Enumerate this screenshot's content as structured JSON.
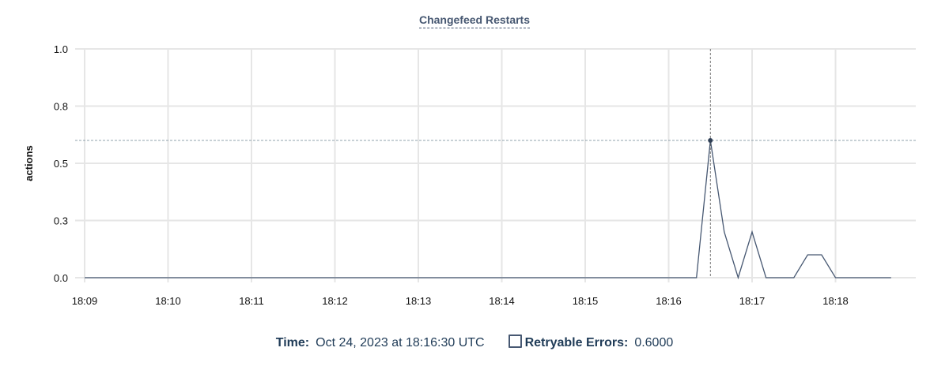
{
  "chart_data": {
    "type": "line",
    "title": "Changefeed Restarts",
    "ylabel": "actions",
    "xlabel": "",
    "ylim": [
      0,
      1.0
    ],
    "y_ticks": [
      "0.0",
      "0.3",
      "0.5",
      "0.8",
      "1.0"
    ],
    "y_tick_values": [
      0,
      0.25,
      0.5,
      0.75,
      1.0
    ],
    "x_ticks": [
      "18:09",
      "18:10",
      "18:11",
      "18:12",
      "18:13",
      "18:14",
      "18:15",
      "18:16",
      "18:17",
      "18:18"
    ],
    "grid": true,
    "line_color": "#475872",
    "x": [
      "18:09:00",
      "18:09:10",
      "18:09:20",
      "18:09:30",
      "18:09:40",
      "18:09:50",
      "18:10:00",
      "18:10:10",
      "18:10:20",
      "18:10:30",
      "18:10:40",
      "18:10:50",
      "18:11:00",
      "18:11:10",
      "18:11:20",
      "18:11:30",
      "18:11:40",
      "18:11:50",
      "18:12:00",
      "18:12:10",
      "18:12:20",
      "18:12:30",
      "18:12:40",
      "18:12:50",
      "18:13:00",
      "18:13:10",
      "18:13:20",
      "18:13:30",
      "18:13:40",
      "18:13:50",
      "18:14:00",
      "18:14:10",
      "18:14:20",
      "18:14:30",
      "18:14:40",
      "18:14:50",
      "18:15:00",
      "18:15:10",
      "18:15:20",
      "18:15:30",
      "18:15:40",
      "18:15:50",
      "18:16:00",
      "18:16:10",
      "18:16:20",
      "18:16:30",
      "18:16:40",
      "18:16:50",
      "18:17:00",
      "18:17:10",
      "18:17:20",
      "18:17:30",
      "18:17:40",
      "18:17:50",
      "18:18:00",
      "18:18:10",
      "18:18:20",
      "18:18:30",
      "18:18:40"
    ],
    "series": [
      {
        "name": "Retryable Errors",
        "values": [
          0,
          0,
          0,
          0,
          0,
          0,
          0,
          0,
          0,
          0,
          0,
          0,
          0,
          0,
          0,
          0,
          0,
          0,
          0,
          0,
          0,
          0,
          0,
          0,
          0,
          0,
          0,
          0,
          0,
          0,
          0,
          0,
          0,
          0,
          0,
          0,
          0,
          0,
          0,
          0,
          0,
          0,
          0,
          0,
          0,
          0.6,
          0.2,
          0,
          0.2,
          0,
          0,
          0,
          0.1,
          0.1,
          0,
          0,
          0,
          0,
          0
        ]
      }
    ],
    "hover": {
      "x": "18:16:30",
      "value": 0.6
    }
  },
  "legend": {
    "time_label": "Time:",
    "time_value": "Oct 24, 2023 at 18:16:30 UTC",
    "series_label": "Retryable Errors:",
    "series_value": "0.6000"
  }
}
